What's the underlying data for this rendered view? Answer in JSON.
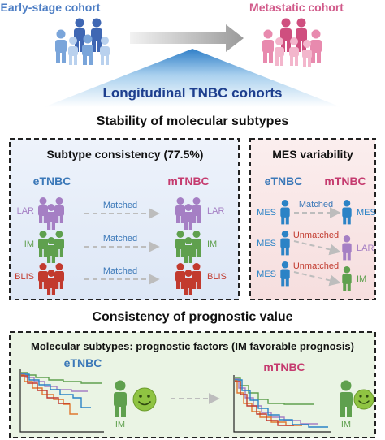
{
  "header": {
    "early_label": "Early-stage cohort",
    "metastatic_label": "Metastatic cohort",
    "banner": "Longitudinal TNBC cohorts"
  },
  "stability": {
    "title": "Stability of molecular subtypes",
    "left_panel": {
      "title": "Subtype consistency (77.5%)",
      "col_left": "eTNBC",
      "col_right": "mTNBC",
      "rows": [
        {
          "subtype": "LAR",
          "relation": "Matched",
          "color": "#a57fc4"
        },
        {
          "subtype": "IM",
          "relation": "Matched",
          "color": "#5fa04e"
        },
        {
          "subtype": "BLIS",
          "relation": "Matched",
          "color": "#c23a2e"
        }
      ]
    },
    "right_panel": {
      "title": "MES variability",
      "col_left": "eTNBC",
      "col_right": "mTNBC",
      "rows": [
        {
          "left": "MES",
          "relation": "Matched",
          "right": "MES",
          "color": "#2b83c6"
        },
        {
          "left": "MES",
          "relation": "Unmatched",
          "right": "LAR",
          "color": "#a57fc4"
        },
        {
          "left": "MES",
          "relation": "Unmatched",
          "right": "IM",
          "color": "#5fa04e"
        }
      ]
    }
  },
  "prognostic": {
    "title": "Consistency of prognostic value",
    "panel_title": "Molecular subtypes: prognostic factors (IM favorable prognosis)",
    "left_label": "eTNBC",
    "right_label": "mTNBC",
    "figure_label_left": "IM",
    "figure_label_right": "IM"
  },
  "colors": {
    "early": "#4c7dc4",
    "metastatic": "#d15a8a",
    "banner_text": "#1e3f8e",
    "etnbc": "#3b78b8",
    "mtnbc": "#c53b6f",
    "im": "#5fa04e",
    "mes": "#2b83c6",
    "lar": "#a57fc4",
    "blis": "#c23a2e",
    "smile": "#8fc442"
  }
}
